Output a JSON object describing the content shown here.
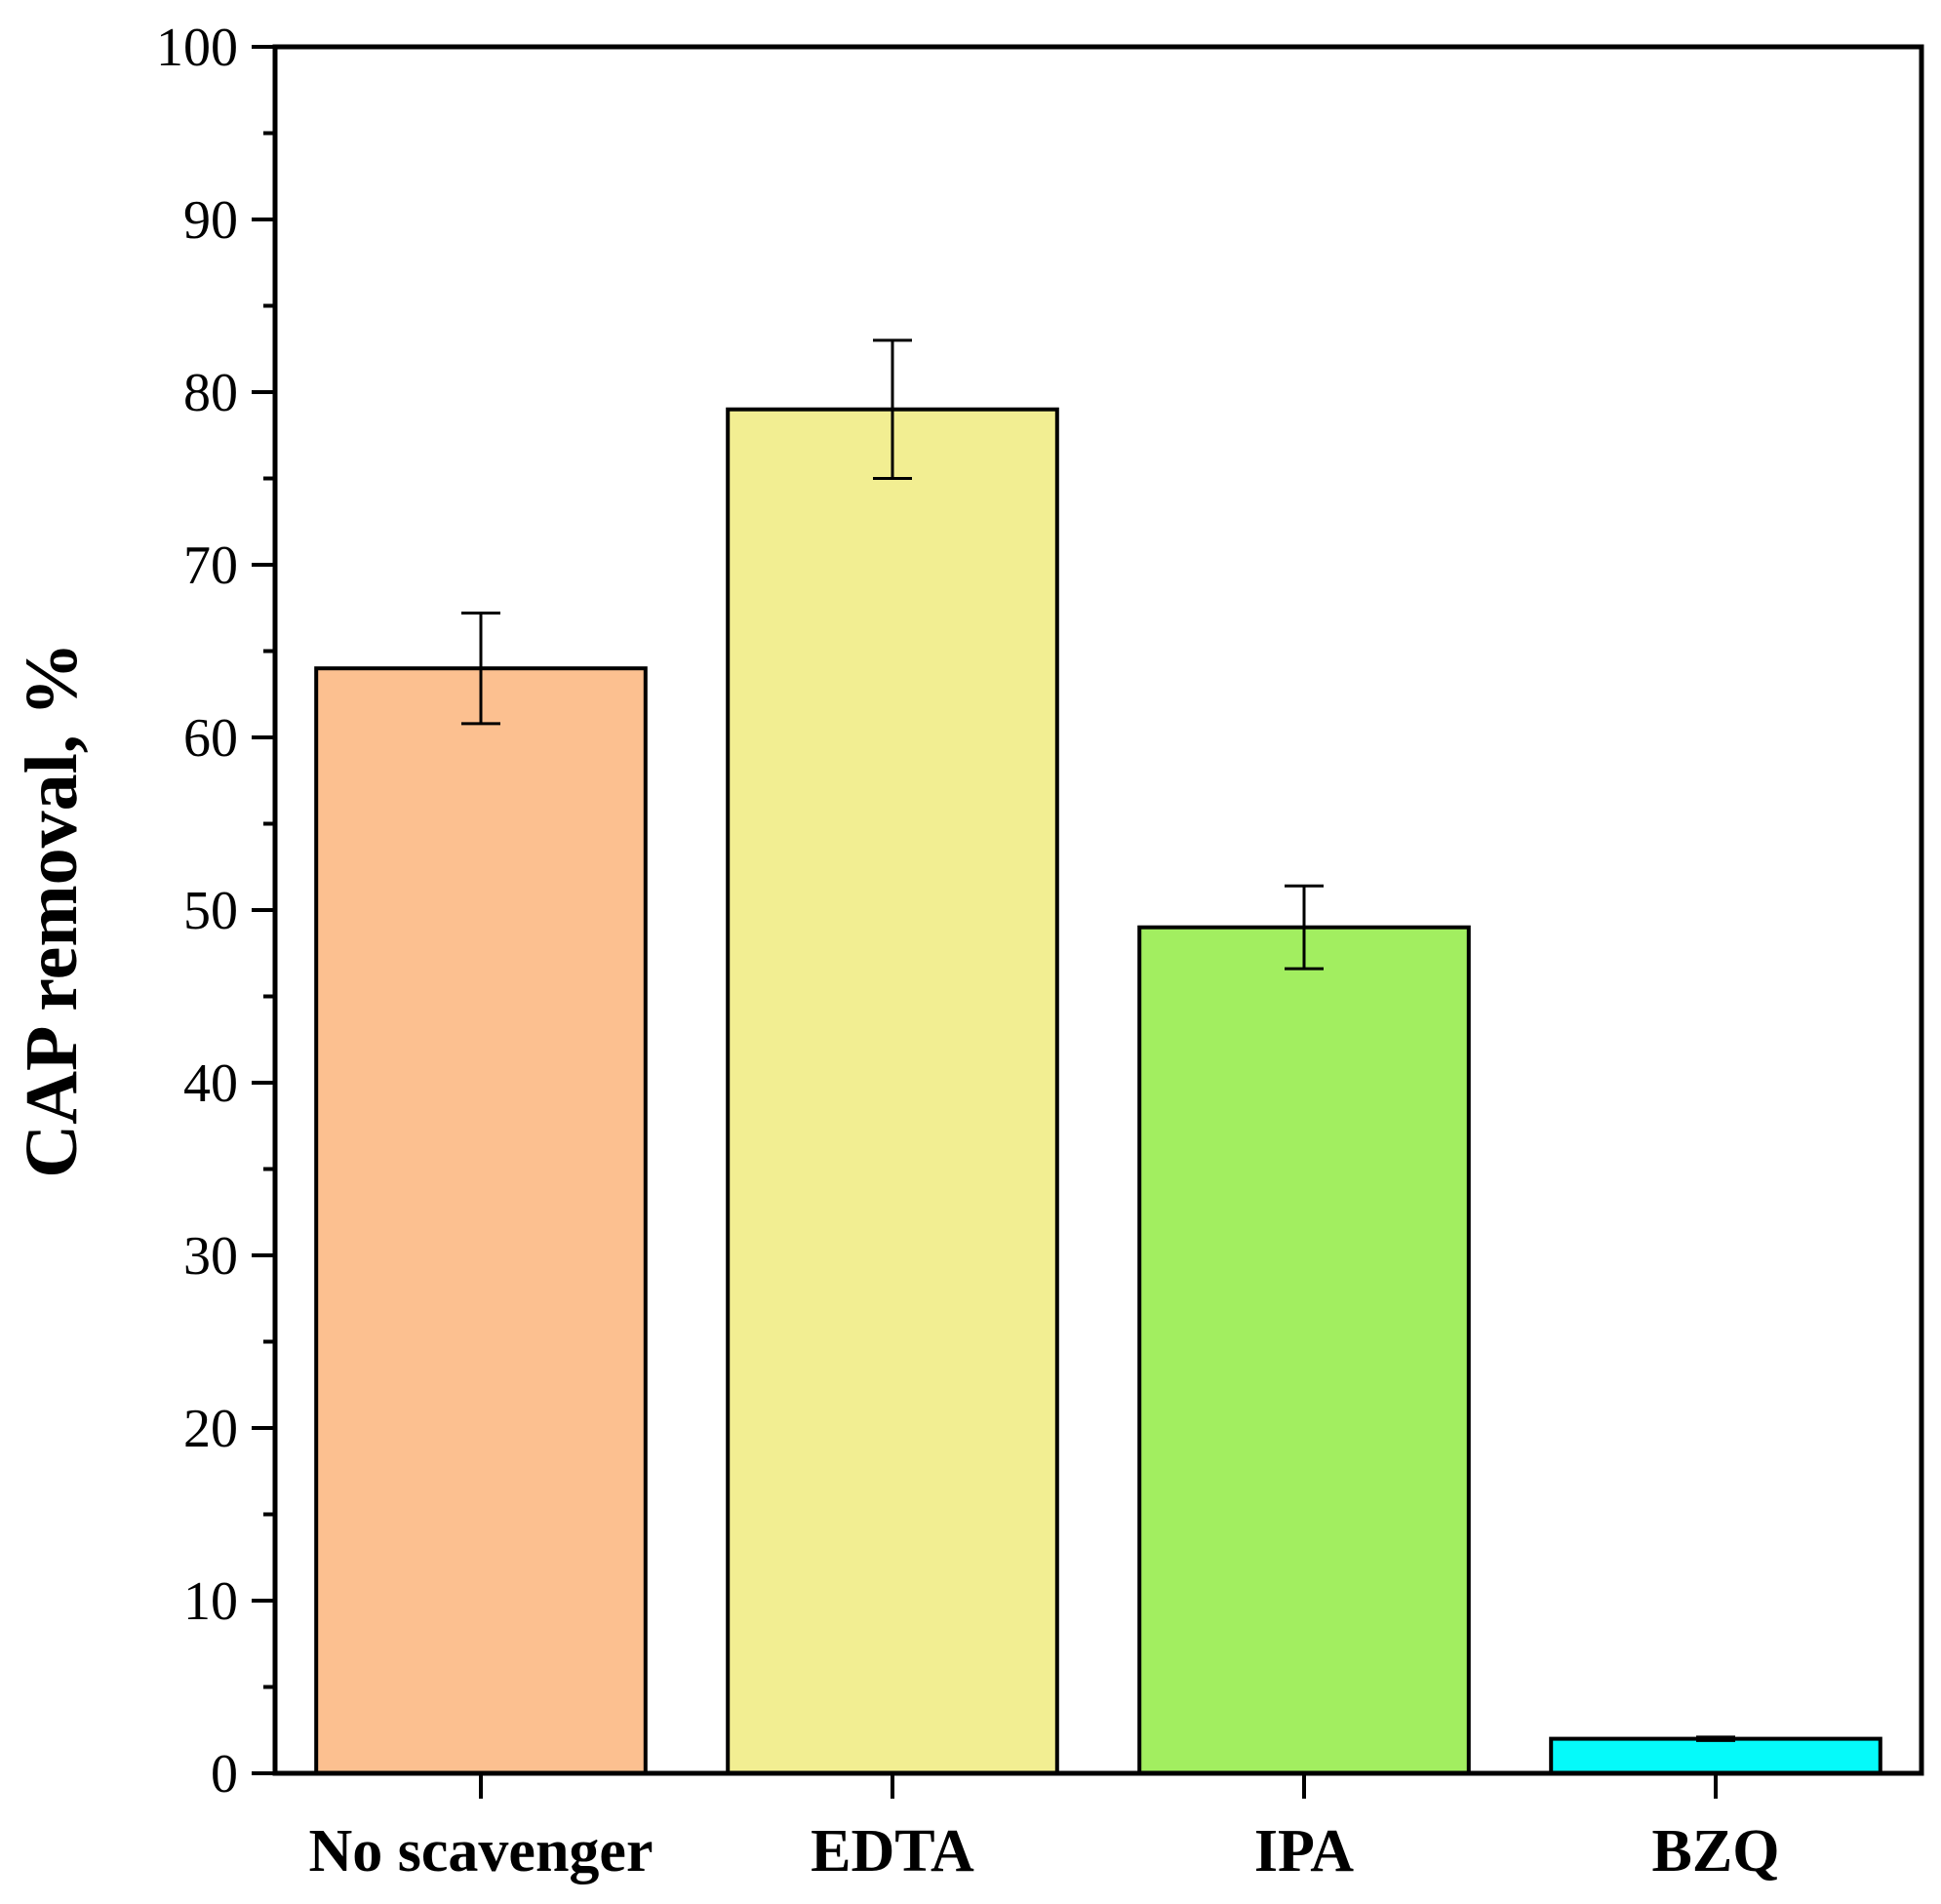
{
  "chart_data": {
    "type": "bar",
    "categories": [
      "No scavenger",
      "EDTA",
      "IPA",
      "BZQ"
    ],
    "values": [
      64,
      79,
      49,
      2
    ],
    "errors": [
      3.2,
      4.0,
      2.4,
      0.1
    ],
    "colors": [
      "#fcc090",
      "#f2ee92",
      "#a2ee60",
      "#05fafa"
    ],
    "title": "",
    "xlabel": "",
    "ylabel": "CAP removal, %",
    "ylim": [
      0,
      100
    ],
    "yticks": [
      0,
      10,
      20,
      30,
      40,
      50,
      60,
      70,
      80,
      90,
      100
    ],
    "ytick_labels": [
      "0",
      "10",
      "20",
      "30",
      "40",
      "50",
      "60",
      "70",
      "80",
      "90",
      "100"
    ],
    "grid": false,
    "legend": "none"
  }
}
